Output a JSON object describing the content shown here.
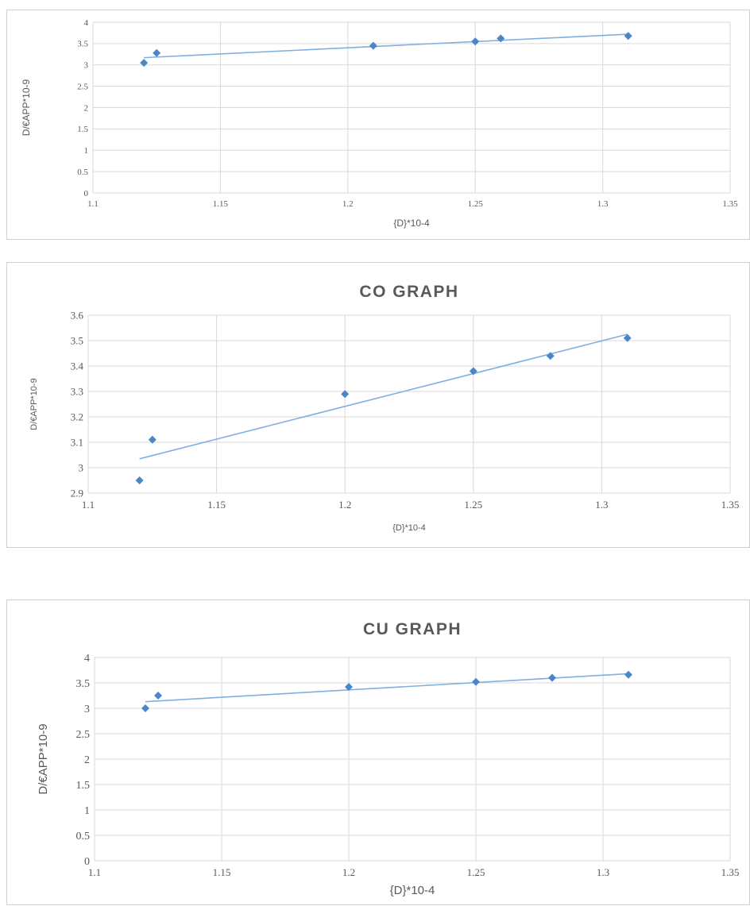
{
  "chart_data": [
    {
      "type": "scatter",
      "title": "",
      "xlabel": "{D}*10-4",
      "ylabel": "D/€APP*10-9",
      "xlim": [
        1.1,
        1.35
      ],
      "ylim": [
        0,
        4
      ],
      "x_ticks": [
        "1.1",
        "1.15",
        "1.2",
        "1.25",
        "1.3",
        "1.35"
      ],
      "y_ticks": [
        "0",
        "0.5",
        "1",
        "1.5",
        "2",
        "2.5",
        "3",
        "3.5",
        "4"
      ],
      "grid": true,
      "legend": "none",
      "marker_color": "#4a86c8",
      "trendline_color": "#7fb0e0",
      "trendline": {
        "x": [
          1.12,
          1.31
        ],
        "y": [
          3.17,
          3.72
        ]
      },
      "points": {
        "x": [
          1.12,
          1.125,
          1.21,
          1.25,
          1.26,
          1.31
        ],
        "y": [
          3.05,
          3.28,
          3.45,
          3.55,
          3.62,
          3.68
        ]
      }
    },
    {
      "type": "scatter",
      "title": "CO GRAPH",
      "xlabel": "{D}*10-4",
      "ylabel": "D/€APP*10-9",
      "xlim": [
        1.1,
        1.35
      ],
      "ylim": [
        2.9,
        3.6
      ],
      "x_ticks": [
        "1.1",
        "1.15",
        "1.2",
        "1.25",
        "1.3",
        "1.35"
      ],
      "y_ticks": [
        "2.9",
        "3",
        "3.1",
        "3.2",
        "3.3",
        "3.4",
        "3.5",
        "3.6"
      ],
      "grid": true,
      "legend": "none",
      "marker_color": "#4a86c8",
      "trendline_color": "#7fb0e0",
      "trendline": {
        "x": [
          1.12,
          1.31
        ],
        "y": [
          3.035,
          3.525
        ]
      },
      "points": {
        "x": [
          1.12,
          1.125,
          1.2,
          1.25,
          1.28,
          1.31
        ],
        "y": [
          2.95,
          3.11,
          3.29,
          3.38,
          3.44,
          3.51
        ]
      }
    },
    {
      "type": "scatter",
      "title": "CU GRAPH",
      "xlabel": "{D}*10-4",
      "ylabel": "D/€APP*10-9",
      "xlim": [
        1.1,
        1.35
      ],
      "ylim": [
        0,
        4
      ],
      "x_ticks": [
        "1.1",
        "1.15",
        "1.2",
        "1.25",
        "1.3",
        "1.35"
      ],
      "y_ticks": [
        "0",
        "0.5",
        "1",
        "1.5",
        "2",
        "2.5",
        "3",
        "3.5",
        "4"
      ],
      "grid": true,
      "legend": "none",
      "marker_color": "#4a86c8",
      "trendline_color": "#7fb0e0",
      "trendline": {
        "x": [
          1.12,
          1.31
        ],
        "y": [
          3.13,
          3.68
        ]
      },
      "points": {
        "x": [
          1.12,
          1.125,
          1.2,
          1.25,
          1.28,
          1.31
        ],
        "y": [
          3.0,
          3.25,
          3.42,
          3.52,
          3.6,
          3.66
        ]
      }
    }
  ]
}
